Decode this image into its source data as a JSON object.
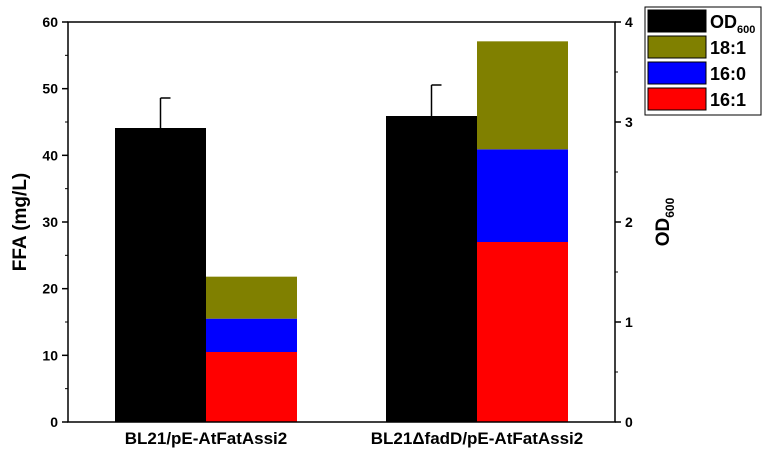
{
  "chart_data": {
    "type": "bar",
    "categories": [
      "BL21/pE-AtFatAssi2",
      "BL21ΔfadD/pE-AtFatAssi2"
    ],
    "left_axis": {
      "label": "FFA (mg/L)",
      "ylim": [
        0,
        60
      ],
      "ticks": [
        "0",
        "10",
        "20",
        "30",
        "40",
        "50",
        "60"
      ]
    },
    "right_axis": {
      "label": "OD",
      "label_subscript": "600",
      "ylim": [
        0,
        4
      ],
      "ticks": [
        "0",
        "1",
        "2",
        "3",
        "4"
      ]
    },
    "od_series": {
      "name": "OD",
      "name_subscript": "600",
      "color": "#000000",
      "axis": "right",
      "values": [
        2.94,
        3.06
      ],
      "error": [
        0.3,
        0.31
      ]
    },
    "stack_series": [
      {
        "name": "16:1",
        "color": "#ff0000",
        "values": [
          10.5,
          27.0
        ]
      },
      {
        "name": "16:0",
        "color": "#0000ff",
        "values": [
          5.0,
          13.9
        ]
      },
      {
        "name": "18:1",
        "color": "#808000",
        "values": [
          6.3,
          16.2
        ]
      }
    ],
    "legend_order": [
      "OD",
      "18:1",
      "16:0",
      "16:1"
    ],
    "legend_position": "top-right",
    "grid": false
  }
}
